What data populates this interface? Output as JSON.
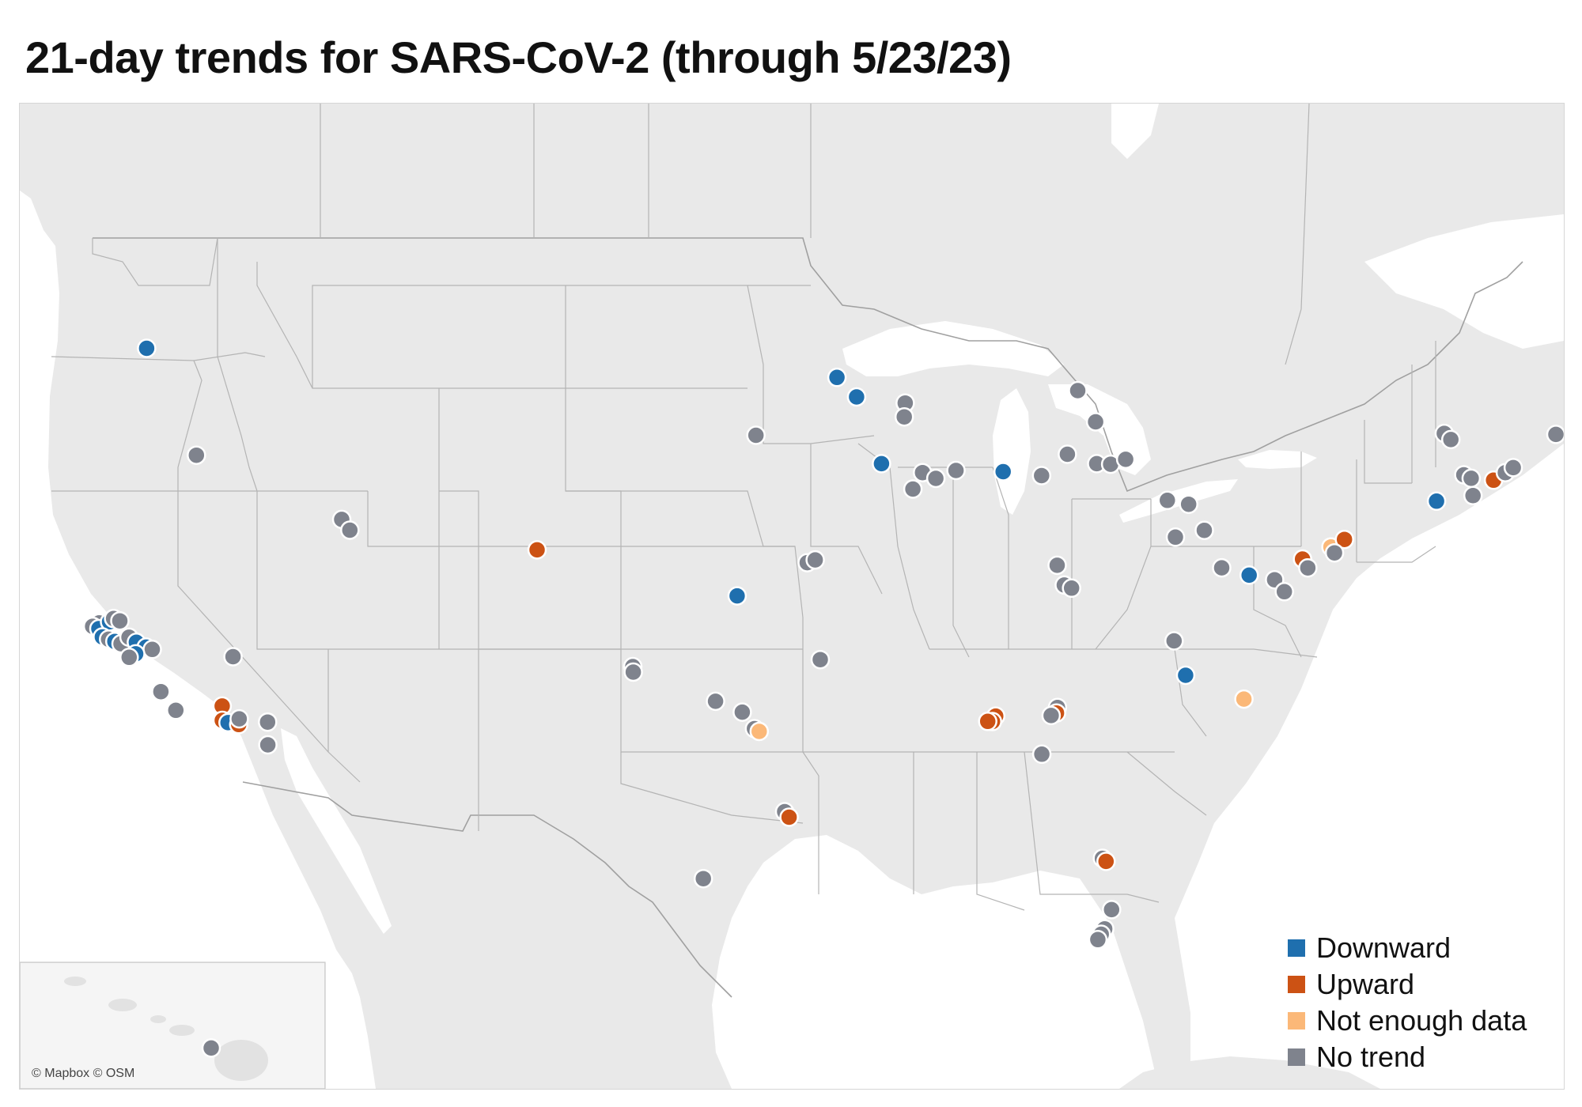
{
  "title": "21-day trends for SARS-CoV-2 (through 5/23/23)",
  "attribution": "© Mapbox © OSM",
  "legend": [
    {
      "key": "downward",
      "label": "Downward",
      "color": "#1f6fae"
    },
    {
      "key": "upward",
      "label": "Upward",
      "color": "#cc5214"
    },
    {
      "key": "not_enough_data",
      "label": "Not enough data",
      "color": "#fbb878"
    },
    {
      "key": "no_trend",
      "label": "No trend",
      "color": "#7f838d"
    }
  ],
  "colors": {
    "land": "#e9e9e9",
    "water": "#ffffff",
    "border": "#a0a0a0",
    "marker_outline": "#ffffff"
  },
  "sites": [
    {
      "lon": -117.0,
      "lat": 47.4,
      "trend": "downward"
    },
    {
      "lon": -116.5,
      "lat": 43.5,
      "trend": "no_trend"
    },
    {
      "lon": -112.0,
      "lat": 40.9,
      "trend": "no_trend"
    },
    {
      "lon": -111.8,
      "lat": 40.5,
      "trend": "no_trend"
    },
    {
      "lon": -105.0,
      "lat": 39.5,
      "trend": "upward"
    },
    {
      "lon": -122.2,
      "lat": 37.9,
      "trend": "no_trend"
    },
    {
      "lon": -122.5,
      "lat": 37.8,
      "trend": "no_trend"
    },
    {
      "lon": -122.3,
      "lat": 37.7,
      "trend": "downward"
    },
    {
      "lon": -121.8,
      "lat": 37.9,
      "trend": "downward"
    },
    {
      "lon": -121.6,
      "lat": 38.0,
      "trend": "no_trend"
    },
    {
      "lon": -121.4,
      "lat": 37.9,
      "trend": "no_trend"
    },
    {
      "lon": -122.3,
      "lat": 37.4,
      "trend": "downward"
    },
    {
      "lon": -122.1,
      "lat": 37.3,
      "trend": "no_trend"
    },
    {
      "lon": -121.9,
      "lat": 37.2,
      "trend": "downward"
    },
    {
      "lon": -121.7,
      "lat": 37.1,
      "trend": "no_trend"
    },
    {
      "lon": -121.3,
      "lat": 37.3,
      "trend": "no_trend"
    },
    {
      "lon": -121.1,
      "lat": 37.1,
      "trend": "downward"
    },
    {
      "lon": -120.8,
      "lat": 36.9,
      "trend": "downward"
    },
    {
      "lon": -120.6,
      "lat": 36.8,
      "trend": "no_trend"
    },
    {
      "lon": -121.3,
      "lat": 36.7,
      "trend": "downward"
    },
    {
      "lon": -121.6,
      "lat": 36.6,
      "trend": "no_trend"
    },
    {
      "lon": -120.9,
      "lat": 35.3,
      "trend": "no_trend"
    },
    {
      "lon": -120.6,
      "lat": 34.6,
      "trend": "no_trend"
    },
    {
      "lon": -117.6,
      "lat": 36.3,
      "trend": "no_trend"
    },
    {
      "lon": -118.7,
      "lat": 34.6,
      "trend": "upward"
    },
    {
      "lon": -118.9,
      "lat": 34.1,
      "trend": "upward"
    },
    {
      "lon": -118.7,
      "lat": 34.0,
      "trend": "downward"
    },
    {
      "lon": -118.3,
      "lat": 33.9,
      "trend": "upward"
    },
    {
      "lon": -118.2,
      "lat": 34.1,
      "trend": "no_trend"
    },
    {
      "lon": -117.1,
      "lat": 33.9,
      "trend": "no_trend"
    },
    {
      "lon": -117.4,
      "lat": 33.1,
      "trend": "no_trend"
    },
    {
      "lon": -93.9,
      "lat": 45.6,
      "trend": "downward"
    },
    {
      "lon": -93.2,
      "lat": 44.9,
      "trend": "downward"
    },
    {
      "lon": -91.5,
      "lat": 44.7,
      "trend": "no_trend"
    },
    {
      "lon": -91.5,
      "lat": 44.2,
      "trend": "no_trend"
    },
    {
      "lon": -96.7,
      "lat": 43.5,
      "trend": "no_trend"
    },
    {
      "lon": -92.2,
      "lat": 42.5,
      "trend": "downward"
    },
    {
      "lon": -90.7,
      "lat": 42.2,
      "trend": "no_trend"
    },
    {
      "lon": -90.2,
      "lat": 42.0,
      "trend": "no_trend"
    },
    {
      "lon": -89.5,
      "lat": 42.3,
      "trend": "no_trend"
    },
    {
      "lon": -91.0,
      "lat": 41.6,
      "trend": "no_trend"
    },
    {
      "lon": -87.8,
      "lat": 42.3,
      "trend": "downward"
    },
    {
      "lon": -86.4,
      "lat": 42.2,
      "trend": "no_trend"
    },
    {
      "lon": -85.6,
      "lat": 45.3,
      "trend": "no_trend"
    },
    {
      "lon": -84.8,
      "lat": 44.2,
      "trend": "no_trend"
    },
    {
      "lon": -85.6,
      "lat": 43.0,
      "trend": "no_trend"
    },
    {
      "lon": -84.5,
      "lat": 42.7,
      "trend": "no_trend"
    },
    {
      "lon": -84.0,
      "lat": 42.7,
      "trend": "no_trend"
    },
    {
      "lon": -83.5,
      "lat": 42.9,
      "trend": "no_trend"
    },
    {
      "lon": -97.5,
      "lat": 37.7,
      "trend": "downward"
    },
    {
      "lon": -94.8,
      "lat": 38.9,
      "trend": "no_trend"
    },
    {
      "lon": -94.5,
      "lat": 39.0,
      "trend": "no_trend"
    },
    {
      "lon": -94.2,
      "lat": 35.4,
      "trend": "no_trend"
    },
    {
      "lon": -101.8,
      "lat": 35.2,
      "trend": "no_trend"
    },
    {
      "lon": -101.8,
      "lat": 35.0,
      "trend": "no_trend"
    },
    {
      "lon": -98.5,
      "lat": 33.9,
      "trend": "no_trend"
    },
    {
      "lon": -97.4,
      "lat": 33.5,
      "trend": "no_trend"
    },
    {
      "lon": -96.9,
      "lat": 32.9,
      "trend": "no_trend"
    },
    {
      "lon": -96.7,
      "lat": 32.8,
      "trend": "not_enough_data"
    },
    {
      "lon": -95.6,
      "lat": 29.9,
      "trend": "no_trend"
    },
    {
      "lon": -95.4,
      "lat": 29.7,
      "trend": "upward"
    },
    {
      "lon": -99.4,
      "lat": 27.5,
      "trend": "no_trend"
    },
    {
      "lon": -85.3,
      "lat": 39.0,
      "trend": "no_trend"
    },
    {
      "lon": -84.9,
      "lat": 38.3,
      "trend": "no_trend"
    },
    {
      "lon": -84.6,
      "lat": 38.2,
      "trend": "no_trend"
    },
    {
      "lon": -81.7,
      "lat": 41.5,
      "trend": "no_trend"
    },
    {
      "lon": -80.9,
      "lat": 41.4,
      "trend": "no_trend"
    },
    {
      "lon": -81.1,
      "lat": 40.2,
      "trend": "no_trend"
    },
    {
      "lon": -80.1,
      "lat": 40.5,
      "trend": "no_trend"
    },
    {
      "lon": -79.1,
      "lat": 39.2,
      "trend": "no_trend"
    },
    {
      "lon": -78.0,
      "lat": 39.0,
      "trend": "downward"
    },
    {
      "lon": -77.0,
      "lat": 38.9,
      "trend": "no_trend"
    },
    {
      "lon": -76.5,
      "lat": 38.5,
      "trend": "no_trend"
    },
    {
      "lon": -76.2,
      "lat": 39.7,
      "trend": "upward"
    },
    {
      "lon": -75.9,
      "lat": 39.4,
      "trend": "no_trend"
    },
    {
      "lon": -75.3,
      "lat": 40.2,
      "trend": "not_enough_data"
    },
    {
      "lon": -74.9,
      "lat": 40.5,
      "trend": "upward"
    },
    {
      "lon": -75.1,
      "lat": 40.0,
      "trend": "no_trend"
    },
    {
      "lon": -80.2,
      "lat": 36.5,
      "trend": "no_trend"
    },
    {
      "lon": -79.4,
      "lat": 35.3,
      "trend": "downward"
    },
    {
      "lon": -76.8,
      "lat": 34.6,
      "trend": "not_enough_data"
    },
    {
      "lon": -86.8,
      "lat": 33.5,
      "trend": "upward"
    },
    {
      "lon": -86.9,
      "lat": 33.3,
      "trend": "upward"
    },
    {
      "lon": -87.1,
      "lat": 33.3,
      "trend": "upward"
    },
    {
      "lon": -84.3,
      "lat": 33.9,
      "trend": "no_trend"
    },
    {
      "lon": -84.3,
      "lat": 33.7,
      "trend": "upward"
    },
    {
      "lon": -84.5,
      "lat": 33.6,
      "trend": "no_trend"
    },
    {
      "lon": -84.6,
      "lat": 32.2,
      "trend": "no_trend"
    },
    {
      "lon": -81.0,
      "lat": 28.6,
      "trend": "no_trend"
    },
    {
      "lon": -80.8,
      "lat": 28.5,
      "trend": "upward"
    },
    {
      "lon": -80.0,
      "lat": 26.8,
      "trend": "no_trend"
    },
    {
      "lon": -80.1,
      "lat": 26.1,
      "trend": "no_trend"
    },
    {
      "lon": -80.2,
      "lat": 25.9,
      "trend": "no_trend"
    },
    {
      "lon": -80.3,
      "lat": 25.7,
      "trend": "no_trend"
    },
    {
      "lon": -72.7,
      "lat": 44.5,
      "trend": "no_trend"
    },
    {
      "lon": -72.4,
      "lat": 44.3,
      "trend": "no_trend"
    },
    {
      "lon": -71.5,
      "lat": 43.1,
      "trend": "no_trend"
    },
    {
      "lon": -71.2,
      "lat": 43.0,
      "trend": "no_trend"
    },
    {
      "lon": -70.4,
      "lat": 43.0,
      "trend": "upward"
    },
    {
      "lon": -70.1,
      "lat": 43.3,
      "trend": "no_trend"
    },
    {
      "lon": -69.9,
      "lat": 43.5,
      "trend": "no_trend"
    },
    {
      "lon": -68.8,
      "lat": 44.8,
      "trend": "no_trend"
    },
    {
      "lon": -70.9,
      "lat": 42.4,
      "trend": "no_trend"
    },
    {
      "lon": -72.1,
      "lat": 42.1,
      "trend": "downward"
    }
  ],
  "hawaii_sites": [
    {
      "lon": -155.5,
      "lat": 19.7,
      "trend": "no_trend"
    }
  ]
}
